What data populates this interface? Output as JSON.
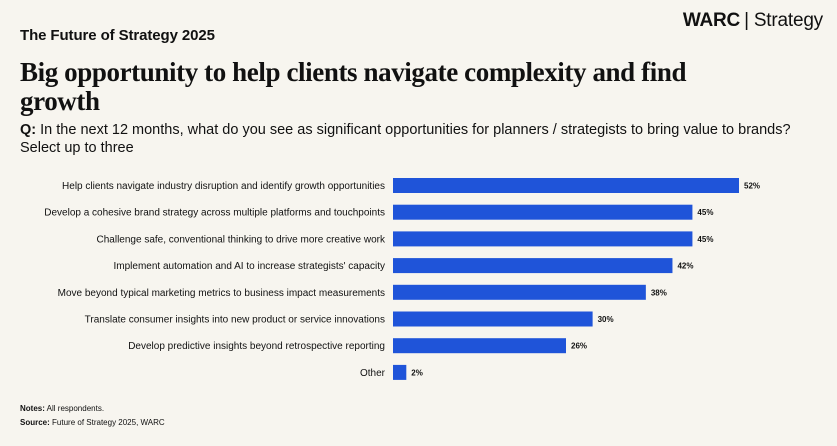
{
  "header": {
    "kicker": "The Future of Strategy 2025",
    "brand_name": "WARC",
    "brand_separator": "|",
    "brand_section": "Strategy"
  },
  "headline": "Big opportunity to help clients navigate complexity and find growth",
  "question": {
    "prefix": "Q:",
    "text": "In the next 12 months, what do you see as significant opportunities for planners / strategists to bring value to brands? Select up to three"
  },
  "footer": {
    "notes_label": "Notes:",
    "notes_text": "All respondents.",
    "source_label": "Source:",
    "source_text": "Future of Strategy 2025, WARC"
  },
  "colors": {
    "bar": "#1f54d9",
    "background": "#f7f5ef",
    "text": "#111111"
  },
  "chart_data": {
    "type": "bar",
    "orientation": "horizontal",
    "categories": [
      "Help clients navigate industry disruption and identify growth opportunities",
      "Develop a cohesive brand strategy across multiple platforms and touchpoints",
      "Challenge safe, conventional thinking to drive more creative work",
      "Implement automation and AI to increase strategists' capacity",
      "Move beyond typical marketing metrics to business impact measurements",
      "Translate consumer insights into new product or service innovations",
      "Develop predictive insights beyond retrospective reporting",
      "Other"
    ],
    "values": [
      52,
      45,
      45,
      42,
      38,
      30,
      26,
      2
    ],
    "value_labels": [
      "52%",
      "45%",
      "45%",
      "42%",
      "38%",
      "30%",
      "26%",
      "2%"
    ],
    "unit": "%",
    "xlim": [
      0,
      52
    ],
    "grid": false,
    "legend": "none"
  }
}
